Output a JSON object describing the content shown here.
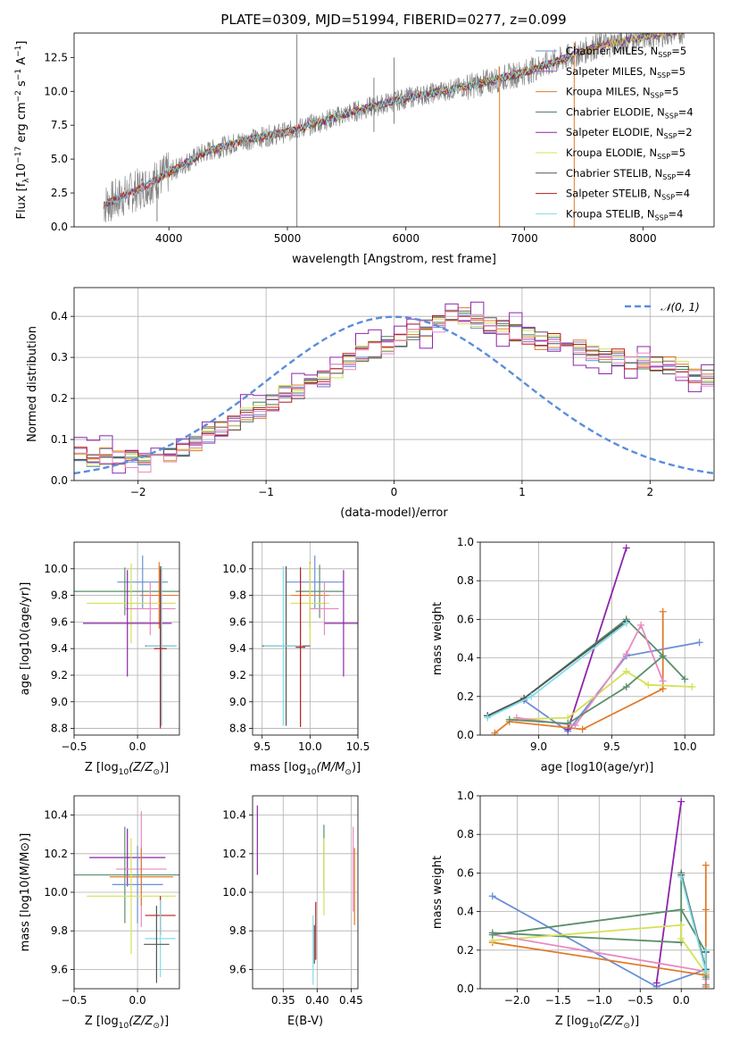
{
  "figure": {
    "title": "PLATE=0309, MJD=51994, FIBERID=0277, z=0.099"
  },
  "colors": {
    "chabrier_miles": "#6a8fd6",
    "salpeter_miles": "#9b59b6",
    "kroupa_miles": "#e07b2a",
    "chabrier_elodie": "#4a7a55",
    "salpeter_elodie": "#8e24aa",
    "kroupa_elodie": "#d4e157",
    "chabrier_stelib": "#555555",
    "salpeter_stelib": "#b71c1c",
    "kroupa_stelib": "#80deea",
    "pink": "#e78ac3",
    "green": "#5a8f6a",
    "normal_curve": "#5b8ddb",
    "grid": "#b0b0b0",
    "data_gray": "#808080"
  },
  "chart_data": [
    {
      "id": "spectrum",
      "type": "line",
      "xlabel": "wavelength [Angstrom, rest frame]",
      "ylabel_main": "Flux [f",
      "ylabel_sub": "λ",
      "ylabel_rest": "10",
      "ylabel_sup1": "−17",
      "ylabel_tail1": " erg cm",
      "ylabel_sup2": "−2",
      "ylabel_tail2": " s",
      "ylabel_sup3": "−1",
      "ylabel_tail3": " A",
      "ylabel_sup4": "−1",
      "ylabel_end": "]",
      "xlim": [
        3200,
        8600
      ],
      "ylim": [
        0,
        14.3
      ],
      "xticks": [
        "4000",
        "5000",
        "6000",
        "7000",
        "8000"
      ],
      "xtick_values": [
        4000,
        5000,
        6000,
        7000,
        8000
      ],
      "yticks": [
        "0.0",
        "2.5",
        "5.0",
        "7.5",
        "10.0",
        "12.5"
      ],
      "ytick_values": [
        0,
        2.5,
        5.0,
        7.5,
        10.0,
        12.5
      ],
      "continuum_x": [
        3450,
        3800,
        4000,
        4300,
        4600,
        5000,
        5300,
        5600,
        6000,
        6300,
        6600,
        7000,
        7300,
        7600,
        8000,
        8350
      ],
      "continuum_y": [
        1.6,
        3.0,
        4.0,
        5.5,
        6.3,
        7.0,
        7.8,
        8.6,
        9.5,
        10.0,
        10.5,
        11.4,
        12.3,
        13.3,
        14.0,
        14.5
      ],
      "spikes": [
        {
          "x": 5080,
          "y0": 0,
          "y1": 14.2
        },
        {
          "x": 6790,
          "y0": 0,
          "y1": 11.8
        },
        {
          "x": 7420,
          "y0": 0,
          "y1": 13.6
        },
        {
          "x": 5730,
          "y0": 7.0,
          "y1": 11.0
        },
        {
          "x": 5900,
          "y0": 7.6,
          "y1": 12.5
        },
        {
          "x": 3900,
          "y0": 0.4,
          "y1": 4.2
        }
      ],
      "legend": [
        {
          "label": "Chabrier MILES, N",
          "sub": "SSP",
          "tail": "=5",
          "color_key": "chabrier_miles"
        },
        {
          "label": "Salpeter MILES, N",
          "sub": "SSP",
          "tail": "=5",
          "color_key": "salpeter_miles"
        },
        {
          "label": "Kroupa MILES, N",
          "sub": "SSP",
          "tail": "=5",
          "color_key": "kroupa_miles"
        },
        {
          "label": "Chabrier ELODIE, N",
          "sub": "SSP",
          "tail": "=4",
          "color_key": "chabrier_elodie"
        },
        {
          "label": "Salpeter ELODIE, N",
          "sub": "SSP",
          "tail": "=2",
          "color_key": "salpeter_elodie"
        },
        {
          "label": "Kroupa ELODIE, N",
          "sub": "SSP",
          "tail": "=5",
          "color_key": "kroupa_elodie"
        },
        {
          "label": "Chabrier STELIB, N",
          "sub": "SSP",
          "tail": "=4",
          "color_key": "chabrier_stelib"
        },
        {
          "label": "Salpeter STELIB, N",
          "sub": "SSP",
          "tail": "=4",
          "color_key": "salpeter_stelib"
        },
        {
          "label": "Kroupa STELIB, N",
          "sub": "SSP",
          "tail": "=4",
          "color_key": "kroupa_stelib"
        }
      ]
    },
    {
      "id": "residuals",
      "type": "bar",
      "xlabel": "(data-model)/error",
      "ylabel": "Normed distribution",
      "xlim": [
        -2.5,
        2.5
      ],
      "ylim": [
        0,
        0.47
      ],
      "xticks": [
        "−2",
        "−1",
        "0",
        "1",
        "2"
      ],
      "xtick_values": [
        -2,
        -1,
        0,
        1,
        2
      ],
      "yticks": [
        "0.0",
        "0.1",
        "0.2",
        "0.3",
        "0.4"
      ],
      "ytick_values": [
        0,
        0.1,
        0.2,
        0.3,
        0.4
      ],
      "legend_label": "𝒩(0, 1)",
      "bin_width": 0.1,
      "bin_start": -2.5,
      "base_values": [
        0.06,
        0.05,
        0.06,
        0.06,
        0.05,
        0.04,
        0.05,
        0.06,
        0.08,
        0.09,
        0.11,
        0.13,
        0.14,
        0.16,
        0.17,
        0.19,
        0.21,
        0.22,
        0.23,
        0.25,
        0.27,
        0.29,
        0.31,
        0.32,
        0.33,
        0.34,
        0.36,
        0.37,
        0.38,
        0.4,
        0.4,
        0.39,
        0.38,
        0.37,
        0.36,
        0.35,
        0.34,
        0.34,
        0.33,
        0.32,
        0.31,
        0.3,
        0.3,
        0.29,
        0.29,
        0.28,
        0.28,
        0.27,
        0.26,
        0.25,
        0.24,
        0.22,
        0.21,
        0.2,
        0.19,
        0.18,
        0.17,
        0.16,
        0.15,
        0.14,
        0.13,
        0.12,
        0.12,
        0.11,
        0.1,
        0.09,
        0.08,
        0.08,
        0.07,
        0.07,
        0.06,
        0.06,
        0.06,
        0.05,
        0.05
      ]
    },
    {
      "id": "age_z",
      "type": "scatter",
      "xlabel_pre": "Z [log",
      "xlabel_sub": "10",
      "xlabel_post": "(Z/Z",
      "xlabel_sub2": "⊙",
      "xlabel_end": ")]",
      "ylabel": "age  [log10(age/yr)]",
      "xlim": [
        -0.5,
        0.33
      ],
      "ylim": [
        8.75,
        10.2
      ],
      "xticks": [
        "−0.5",
        "0.0"
      ],
      "xtick_values": [
        -0.5,
        0.0
      ],
      "yticks": [
        "8.8",
        "9.0",
        "9.2",
        "9.4",
        "9.6",
        "9.8",
        "10.0"
      ],
      "ytick_values": [
        8.8,
        9.0,
        9.2,
        9.4,
        9.6,
        9.8,
        10.0
      ],
      "points": [
        {
          "x": 0.04,
          "y": 9.9,
          "xerr": 0.2,
          "yerr": 0.2,
          "color_key": "chabrier_miles"
        },
        {
          "x": 0.17,
          "y": 9.8,
          "xerr": 0.15,
          "yerr": 0.25,
          "color_key": "kroupa_miles"
        },
        {
          "x": -0.1,
          "y": 9.83,
          "xerr": 0.45,
          "yerr": 0.18,
          "color_key": "green"
        },
        {
          "x": -0.05,
          "y": 9.74,
          "xerr": 0.35,
          "yerr": 0.3,
          "color_key": "kroupa_elodie"
        },
        {
          "x": 0.1,
          "y": 9.7,
          "xerr": 0.2,
          "yerr": 0.2,
          "color_key": "pink"
        },
        {
          "x": -0.08,
          "y": 9.59,
          "xerr": 0.35,
          "yerr": 0.4,
          "color_key": "salpeter_elodie"
        },
        {
          "x": 0.18,
          "y": 9.42,
          "xerr": 0.12,
          "yerr": 0.6,
          "color_key": "chabrier_stelib"
        },
        {
          "x": 0.19,
          "y": 9.42,
          "xerr": 0.12,
          "yerr": 0.6,
          "color_key": "kroupa_stelib"
        },
        {
          "x": 0.18,
          "y": 9.4,
          "xerr": 0.05,
          "yerr": 0.6,
          "color_key": "salpeter_stelib"
        }
      ]
    },
    {
      "id": "age_mass",
      "type": "scatter",
      "xlabel_pre": "mass [log",
      "xlabel_sub": "10",
      "xlabel_post": "(M/M",
      "xlabel_sub2": "⊙",
      "xlabel_end": ")]",
      "xlim": [
        9.4,
        10.5
      ],
      "ylim": [
        8.75,
        10.2
      ],
      "xticks": [
        "9.5",
        "10.0",
        "10.5"
      ],
      "xtick_values": [
        9.5,
        10.0,
        10.5
      ],
      "yticks": [
        "8.8",
        "9.0",
        "9.2",
        "9.4",
        "9.6",
        "9.8",
        "10.0"
      ],
      "ytick_values": [
        8.8,
        9.0,
        9.2,
        9.4,
        9.6,
        9.8,
        10.0
      ],
      "points": [
        {
          "x": 10.05,
          "y": 9.9,
          "xerr": 0.3,
          "yerr": 0.2,
          "color_key": "chabrier_miles"
        },
        {
          "x": 10.1,
          "y": 9.83,
          "xerr": 0.25,
          "yerr": 0.2,
          "color_key": "green"
        },
        {
          "x": 10.0,
          "y": 9.8,
          "xerr": 0.2,
          "yerr": 0.25,
          "color_key": "kroupa_miles"
        },
        {
          "x": 10.0,
          "y": 9.74,
          "xerr": 0.2,
          "yerr": 0.3,
          "color_key": "kroupa_elodie"
        },
        {
          "x": 10.15,
          "y": 9.7,
          "xerr": 0.15,
          "yerr": 0.2,
          "color_key": "pink"
        },
        {
          "x": 10.35,
          "y": 9.59,
          "xerr": 0.2,
          "yerr": 0.4,
          "color_key": "salpeter_elodie"
        },
        {
          "x": 9.75,
          "y": 9.42,
          "xerr": 0.25,
          "yerr": 0.6,
          "color_key": "chabrier_stelib"
        },
        {
          "x": 9.72,
          "y": 9.42,
          "xerr": 0.2,
          "yerr": 0.6,
          "color_key": "kroupa_stelib"
        },
        {
          "x": 9.9,
          "y": 9.41,
          "xerr": 0.05,
          "yerr": 0.6,
          "color_key": "salpeter_stelib"
        }
      ]
    },
    {
      "id": "weight_age",
      "type": "line",
      "xlabel": "age  [log10(age/yr)]",
      "ylabel": "mass weight",
      "xlim": [
        8.6,
        10.2
      ],
      "ylim": [
        0,
        1.0
      ],
      "xticks": [
        "9.0",
        "9.5",
        "10.0"
      ],
      "xtick_values": [
        9.0,
        9.5,
        10.0
      ],
      "yticks": [
        "0.0",
        "0.2",
        "0.4",
        "0.6",
        "0.8",
        "1.0"
      ],
      "ytick_values": [
        0,
        0.2,
        0.4,
        0.6,
        0.8,
        1.0
      ],
      "series": [
        {
          "color_key": "chabrier_miles",
          "x": [
            8.65,
            8.9,
            9.2,
            9.6,
            10.1
          ],
          "y": [
            0.1,
            0.18,
            0.02,
            0.41,
            0.48
          ]
        },
        {
          "color_key": "salpeter_elodie",
          "x": [
            9.2,
            9.6
          ],
          "y": [
            0.03,
            0.97
          ]
        },
        {
          "color_key": "kroupa_miles",
          "x": [
            8.7,
            8.8,
            9.3,
            9.85,
            9.85
          ],
          "y": [
            0.01,
            0.07,
            0.03,
            0.24,
            0.64
          ]
        },
        {
          "color_key": "green",
          "x": [
            8.65,
            8.9,
            9.6,
            9.85,
            10.0
          ],
          "y": [
            0.1,
            0.19,
            0.6,
            0.41,
            0.29
          ]
        },
        {
          "color_key": "kroupa_elodie",
          "x": [
            8.8,
            9.2,
            9.6,
            9.75,
            10.05
          ],
          "y": [
            0.08,
            0.09,
            0.33,
            0.26,
            0.25
          ]
        },
        {
          "color_key": "pink",
          "x": [
            8.85,
            9.25,
            9.6,
            9.7,
            9.85
          ],
          "y": [
            0.09,
            0.05,
            0.42,
            0.57,
            0.28
          ]
        },
        {
          "color_key": "chabrier_stelib",
          "x": [
            8.65,
            8.9,
            9.6
          ],
          "y": [
            0.1,
            0.19,
            0.59
          ]
        },
        {
          "color_key": "kroupa_stelib",
          "x": [
            8.65,
            8.95,
            9.6
          ],
          "y": [
            0.09,
            0.2,
            0.58
          ]
        },
        {
          "color_key": "green",
          "x": [
            8.8,
            9.2,
            9.6,
            9.85
          ],
          "y": [
            0.08,
            0.06,
            0.25,
            0.41
          ]
        }
      ]
    },
    {
      "id": "mass_z",
      "type": "scatter",
      "ylabel": "mass [log10(M/M⊙)]",
      "xlim": [
        -0.5,
        0.33
      ],
      "ylim": [
        9.5,
        10.5
      ],
      "xticks": [
        "−0.5",
        "0.0"
      ],
      "xtick_values": [
        -0.5,
        0.0
      ],
      "yticks": [
        "9.6",
        "9.8",
        "10.0",
        "10.2",
        "10.4"
      ],
      "ytick_values": [
        9.6,
        9.8,
        10.0,
        10.2,
        10.4
      ],
      "points": [
        {
          "x": -0.08,
          "y": 10.18,
          "xerr": 0.3,
          "yerr": 0.15,
          "color_key": "salpeter_elodie"
        },
        {
          "x": 0.03,
          "y": 10.12,
          "xerr": 0.2,
          "yerr": 0.3,
          "color_key": "pink"
        },
        {
          "x": -0.1,
          "y": 10.09,
          "xerr": 0.45,
          "yerr": 0.25,
          "color_key": "green"
        },
        {
          "x": 0.03,
          "y": 10.08,
          "xerr": 0.25,
          "yerr": 0.15,
          "color_key": "kroupa_miles"
        },
        {
          "x": 0.0,
          "y": 10.04,
          "xerr": 0.2,
          "yerr": 0.2,
          "color_key": "chabrier_miles"
        },
        {
          "x": -0.05,
          "y": 9.98,
          "xerr": 0.35,
          "yerr": 0.3,
          "color_key": "kroupa_elodie"
        },
        {
          "x": 0.18,
          "y": 9.88,
          "xerr": 0.12,
          "yerr": 0.1,
          "color_key": "salpeter_stelib"
        },
        {
          "x": 0.18,
          "y": 9.76,
          "xerr": 0.12,
          "yerr": 0.2,
          "color_key": "kroupa_stelib"
        },
        {
          "x": 0.15,
          "y": 9.73,
          "xerr": 0.1,
          "yerr": 0.2,
          "color_key": "chabrier_stelib"
        }
      ]
    },
    {
      "id": "mass_ebv",
      "type": "scatter",
      "xlabel": "E(B-V)",
      "xlim": [
        0.305,
        0.46
      ],
      "ylim": [
        9.5,
        10.5
      ],
      "xticks": [
        "0.35",
        "0.40",
        "0.45"
      ],
      "xtick_values": [
        0.35,
        0.4,
        0.45
      ],
      "yticks": [
        "9.6",
        "9.8",
        "10.0",
        "10.2",
        "10.4"
      ],
      "ytick_values": [
        9.6,
        9.8,
        10.0,
        10.2,
        10.4
      ],
      "points": [
        {
          "x": 0.312,
          "y": 10.27,
          "xerr": 0,
          "yerr": 0.18,
          "color_key": "salpeter_elodie"
        },
        {
          "x": 0.41,
          "y": 10.18,
          "xerr": 0,
          "yerr": 0.17,
          "color_key": "green"
        },
        {
          "x": 0.41,
          "y": 10.08,
          "xerr": 0,
          "yerr": 0.2,
          "color_key": "kroupa_elodie"
        },
        {
          "x": 0.453,
          "y": 10.12,
          "xerr": 0,
          "yerr": 0.22,
          "color_key": "pink"
        },
        {
          "x": 0.455,
          "y": 10.03,
          "xerr": 0,
          "yerr": 0.2,
          "color_key": "kroupa_miles"
        },
        {
          "x": 0.398,
          "y": 9.8,
          "xerr": 0,
          "yerr": 0.15,
          "color_key": "salpeter_stelib"
        },
        {
          "x": 0.396,
          "y": 9.73,
          "xerr": 0,
          "yerr": 0.1,
          "color_key": "chabrier_stelib"
        },
        {
          "x": 0.394,
          "y": 9.7,
          "xerr": 0,
          "yerr": 0.18,
          "color_key": "kroupa_stelib"
        }
      ]
    },
    {
      "id": "weight_z",
      "type": "line",
      "ylabel": "mass weight",
      "xlim": [
        -2.45,
        0.4
      ],
      "ylim": [
        0,
        1.0
      ],
      "xticks": [
        "−2.0",
        "−1.5",
        "−1.0",
        "−0.5",
        "0.0"
      ],
      "xtick_values": [
        -2.0,
        -1.5,
        -1.0,
        -0.5,
        0.0
      ],
      "yticks": [
        "0.0",
        "0.2",
        "0.4",
        "0.6",
        "0.8",
        "1.0"
      ],
      "ytick_values": [
        0,
        0.2,
        0.4,
        0.6,
        0.8,
        1.0
      ],
      "series": [
        {
          "color_key": "chabrier_miles",
          "x": [
            -2.3,
            -0.3,
            0.3,
            0.3,
            0.3
          ],
          "y": [
            0.48,
            0.01,
            0.1,
            0.02,
            0.08
          ]
        },
        {
          "color_key": "salpeter_elodie",
          "x": [
            -0.3,
            0.0
          ],
          "y": [
            0.03,
            0.97
          ]
        },
        {
          "color_key": "kroupa_miles",
          "x": [
            -2.3,
            0.3,
            0.3,
            0.3,
            0.3
          ],
          "y": [
            0.24,
            0.07,
            0.64,
            0.41,
            0.01
          ]
        },
        {
          "color_key": "green",
          "x": [
            -2.3,
            0.0,
            0.0,
            0.3,
            0.3
          ],
          "y": [
            0.29,
            0.24,
            0.6,
            0.1,
            0.19
          ]
        },
        {
          "color_key": "kroupa_elodie",
          "x": [
            -2.3,
            0.0,
            0.0,
            0.3,
            0.3
          ],
          "y": [
            0.25,
            0.33,
            0.26,
            0.08,
            0.09
          ]
        },
        {
          "color_key": "pink",
          "x": [
            -2.3,
            0.3,
            0.3
          ],
          "y": [
            0.28,
            0.09,
            0.05
          ]
        },
        {
          "color_key": "green",
          "x": [
            -2.3,
            0.0,
            0.3,
            0.3
          ],
          "y": [
            0.28,
            0.41,
            0.19,
            0.06
          ]
        },
        {
          "color_key": "chabrier_stelib",
          "x": [
            0.0,
            0.3,
            0.3
          ],
          "y": [
            0.59,
            0.1,
            0.19
          ]
        },
        {
          "color_key": "kroupa_stelib",
          "x": [
            0.0,
            0.3,
            0.3
          ],
          "y": [
            0.58,
            0.09,
            0.2
          ]
        }
      ]
    }
  ]
}
